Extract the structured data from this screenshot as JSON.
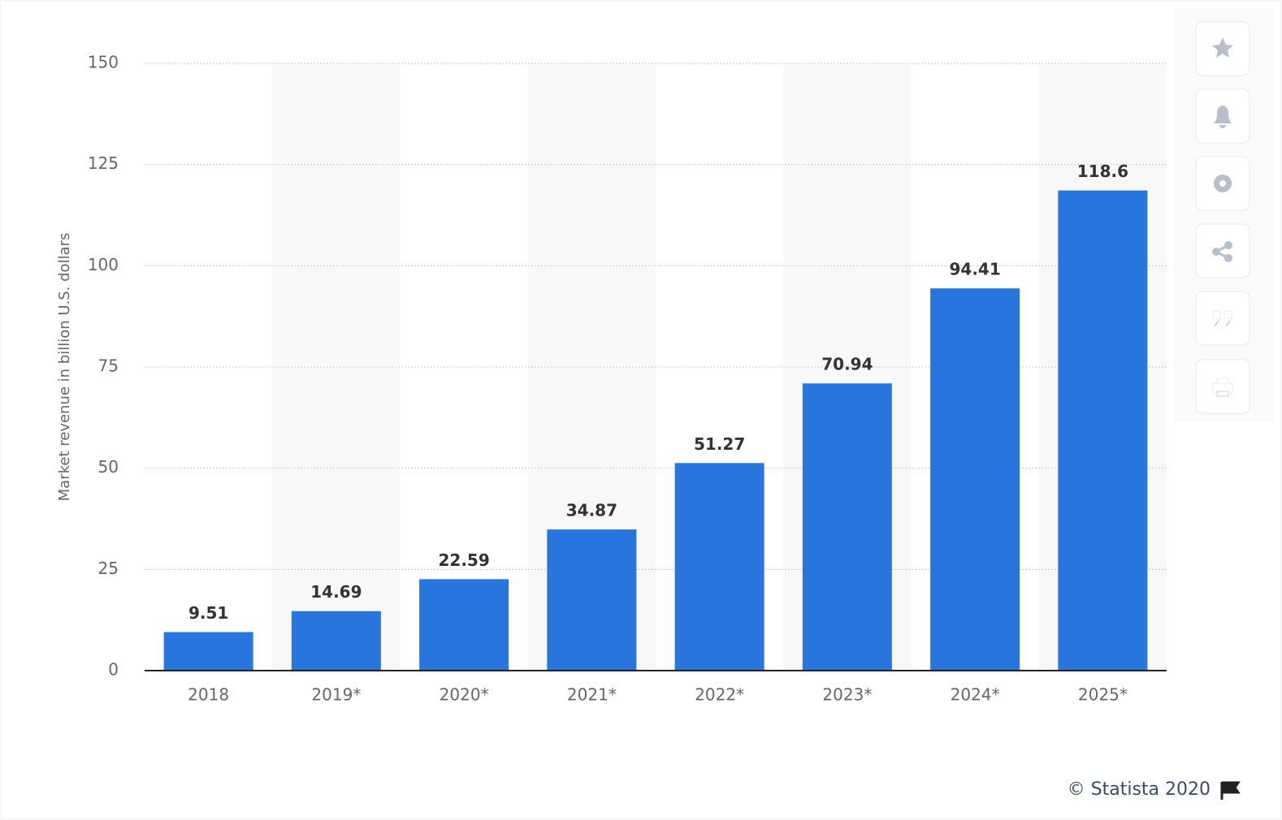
{
  "chart_data": {
    "type": "bar",
    "y_label": "Market revenue in billion U.S. dollars",
    "categories": [
      "2018",
      "2019*",
      "2020*",
      "2021*",
      "2022*",
      "2023*",
      "2024*",
      "2025*"
    ],
    "values": [
      9.51,
      14.69,
      22.59,
      34.87,
      51.27,
      70.94,
      94.41,
      118.6
    ],
    "color": "#2876dd",
    "ylim": [
      0,
      150
    ],
    "yticks": [
      0,
      25,
      50,
      75,
      100,
      125,
      150
    ],
    "grid": true,
    "credit": "© Statista 2020"
  }
}
